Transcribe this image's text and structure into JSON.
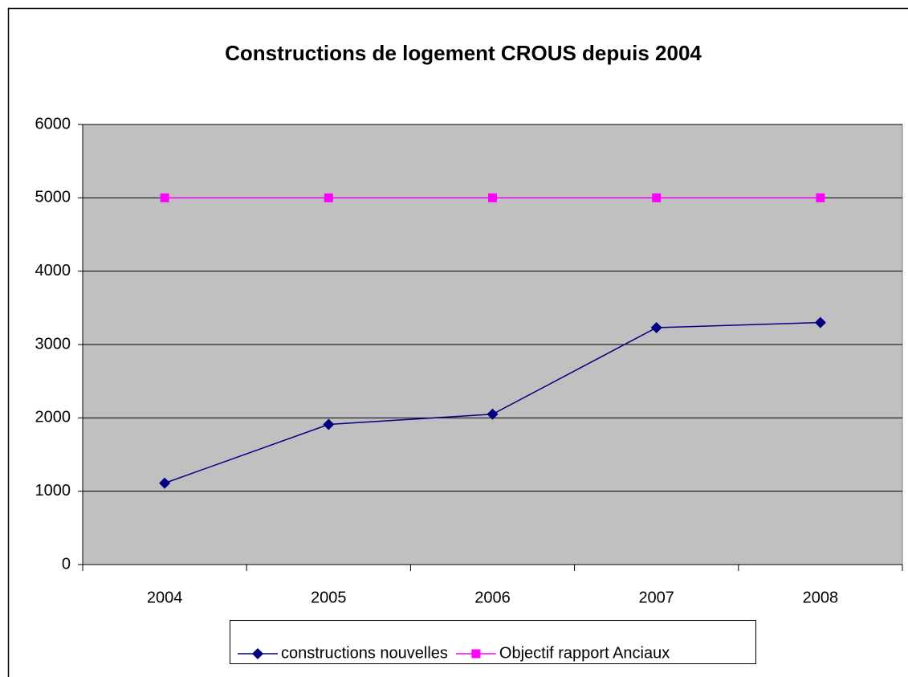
{
  "chart_data": {
    "type": "line",
    "title": "Constructions de logement CROUS depuis 2004",
    "categories": [
      "2004",
      "2005",
      "2006",
      "2007",
      "2008"
    ],
    "series": [
      {
        "name": "constructions nouvelles",
        "color": "#000080",
        "marker": "diamond",
        "values": [
          1110,
          1910,
          2050,
          3230,
          3300
        ]
      },
      {
        "name": "Objectif rapport Anciaux",
        "color": "#ff00ff",
        "marker": "square",
        "values": [
          5000,
          5000,
          5000,
          5000,
          5000
        ]
      }
    ],
    "ylim": [
      0,
      6000
    ],
    "yticks": [
      0,
      1000,
      2000,
      3000,
      4000,
      5000,
      6000
    ],
    "grid": true,
    "legend": "bottom"
  }
}
